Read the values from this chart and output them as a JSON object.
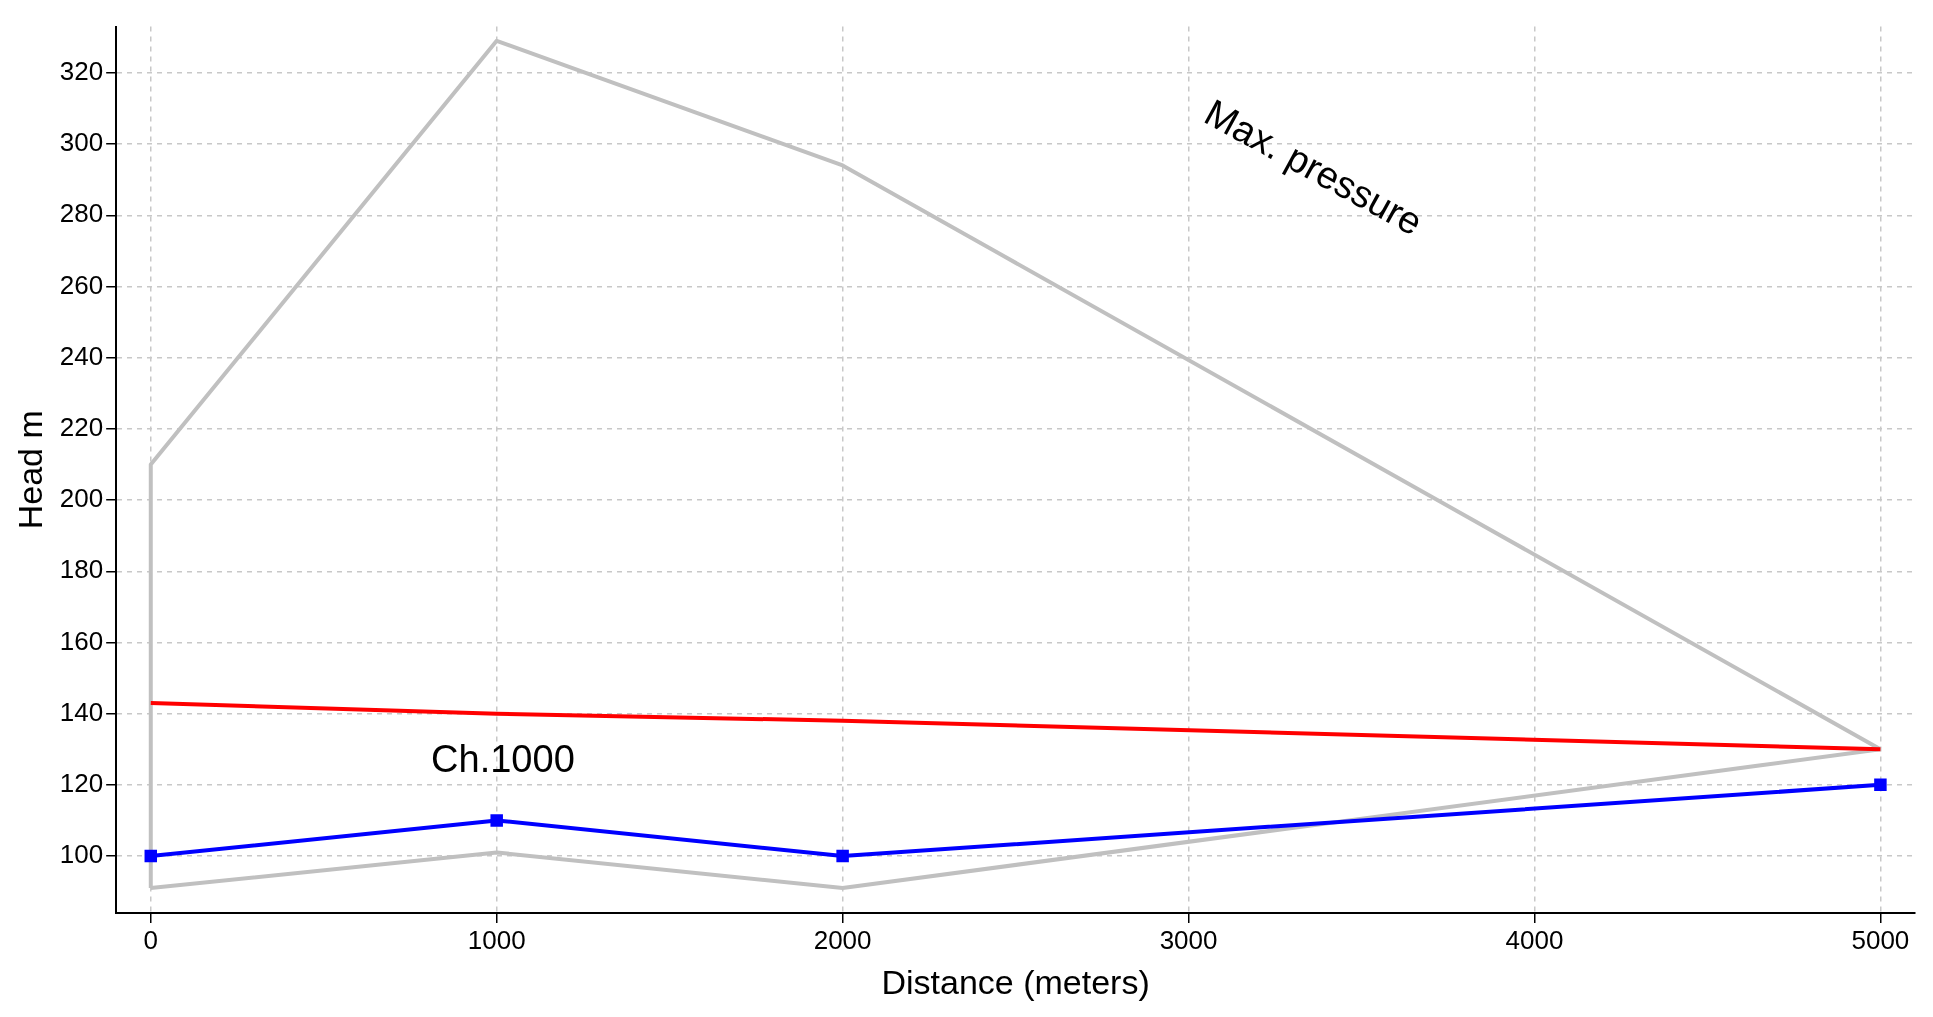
{
  "chart_data": {
    "type": "line",
    "xlabel": "Distance (meters)",
    "ylabel": "Head m",
    "xlim": [
      -100,
      5100
    ],
    "ylim": [
      84,
      333
    ],
    "xticks": [
      0,
      1000,
      2000,
      3000,
      4000,
      5000
    ],
    "yticks": [
      100,
      120,
      140,
      160,
      180,
      200,
      220,
      240,
      260,
      280,
      300,
      320
    ],
    "grid": true,
    "legend": false,
    "marker": "none",
    "line_style": "solid",
    "series": [
      {
        "color": "#c0c0c0",
        "x": [
          0,
          0,
          1000,
          2000,
          5000
        ],
        "values": [
          91,
          210,
          329,
          294,
          130
        ]
      },
      {
        "color": "#c0c0c0",
        "x": [
          0,
          1000,
          2000,
          5000
        ],
        "values": [
          91,
          101,
          91,
          130
        ]
      },
      {
        "color": "#ff0000",
        "x": [
          0,
          1000,
          2000,
          5000
        ],
        "values": [
          143,
          140,
          138,
          130
        ]
      },
      {
        "color": "#0000ff",
        "x": [
          0,
          1000,
          2000,
          5000
        ],
        "values": [
          100,
          110,
          100,
          120
        ],
        "marker": "square"
      }
    ],
    "annotations": [
      "Max. pressure",
      "Ch.1000"
    ]
  }
}
